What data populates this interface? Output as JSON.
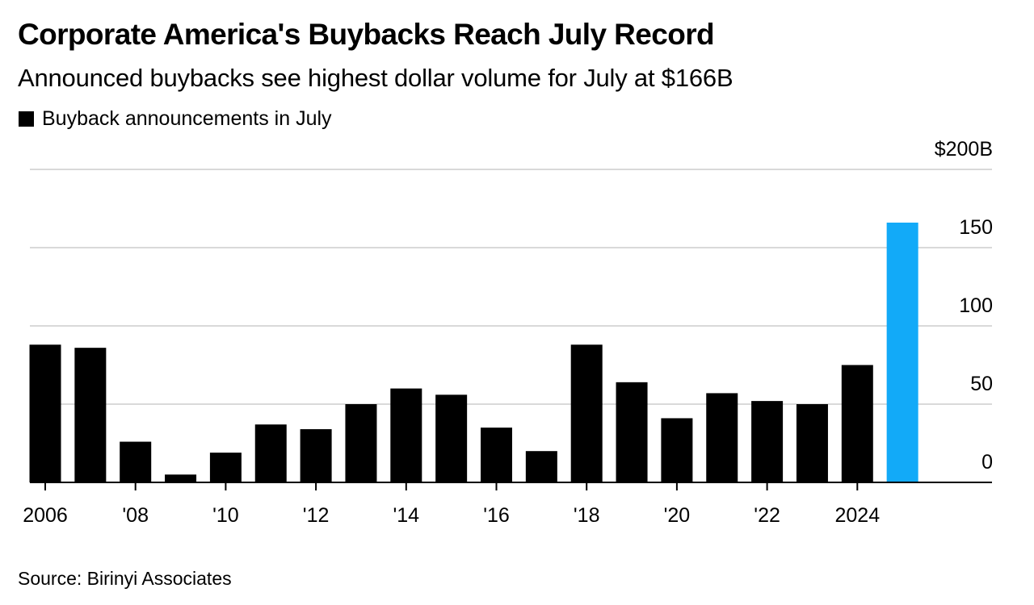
{
  "chart_data": {
    "type": "bar",
    "title": "Corporate America's Buybacks Reach July Record",
    "subtitle": "Announced buybacks see highest dollar volume for July at $166B",
    "legend": [
      {
        "label": "Buyback announcements in July",
        "color": "#000000"
      }
    ],
    "source": "Source: Birinyi Associates",
    "categories": [
      "2006",
      "2007",
      "2008",
      "2009",
      "2010",
      "2011",
      "2012",
      "2013",
      "2014",
      "2015",
      "2016",
      "2017",
      "2018",
      "2019",
      "2020",
      "2021",
      "2022",
      "2023",
      "2024",
      "2025"
    ],
    "x_tick_labels": [
      {
        "category": "2006",
        "label": "2006"
      },
      {
        "category": "2008",
        "label": "'08"
      },
      {
        "category": "2010",
        "label": "'10"
      },
      {
        "category": "2012",
        "label": "'12"
      },
      {
        "category": "2014",
        "label": "'14"
      },
      {
        "category": "2016",
        "label": "'16"
      },
      {
        "category": "2018",
        "label": "'18"
      },
      {
        "category": "2020",
        "label": "'20"
      },
      {
        "category": "2022",
        "label": "'22"
      },
      {
        "category": "2024",
        "label": "2024"
      }
    ],
    "series": [
      {
        "name": "Buyback announcements in July",
        "values": [
          88,
          86,
          26,
          5,
          19,
          37,
          34,
          50,
          60,
          56,
          35,
          20,
          88,
          64,
          41,
          57,
          52,
          50,
          75,
          166
        ]
      }
    ],
    "bar_colors": {
      "default": "#000000",
      "highlight": "#12aaf8"
    },
    "highlight_category": "2025",
    "ylim": [
      0,
      200
    ],
    "yticks": [
      {
        "value": 0,
        "label": "0"
      },
      {
        "value": 50,
        "label": "50"
      },
      {
        "value": 100,
        "label": "100"
      },
      {
        "value": 150,
        "label": "150"
      },
      {
        "value": 200,
        "label": "$200B"
      }
    ],
    "axis_position": "right",
    "grid": true,
    "grid_color": "#d9d9d9"
  }
}
